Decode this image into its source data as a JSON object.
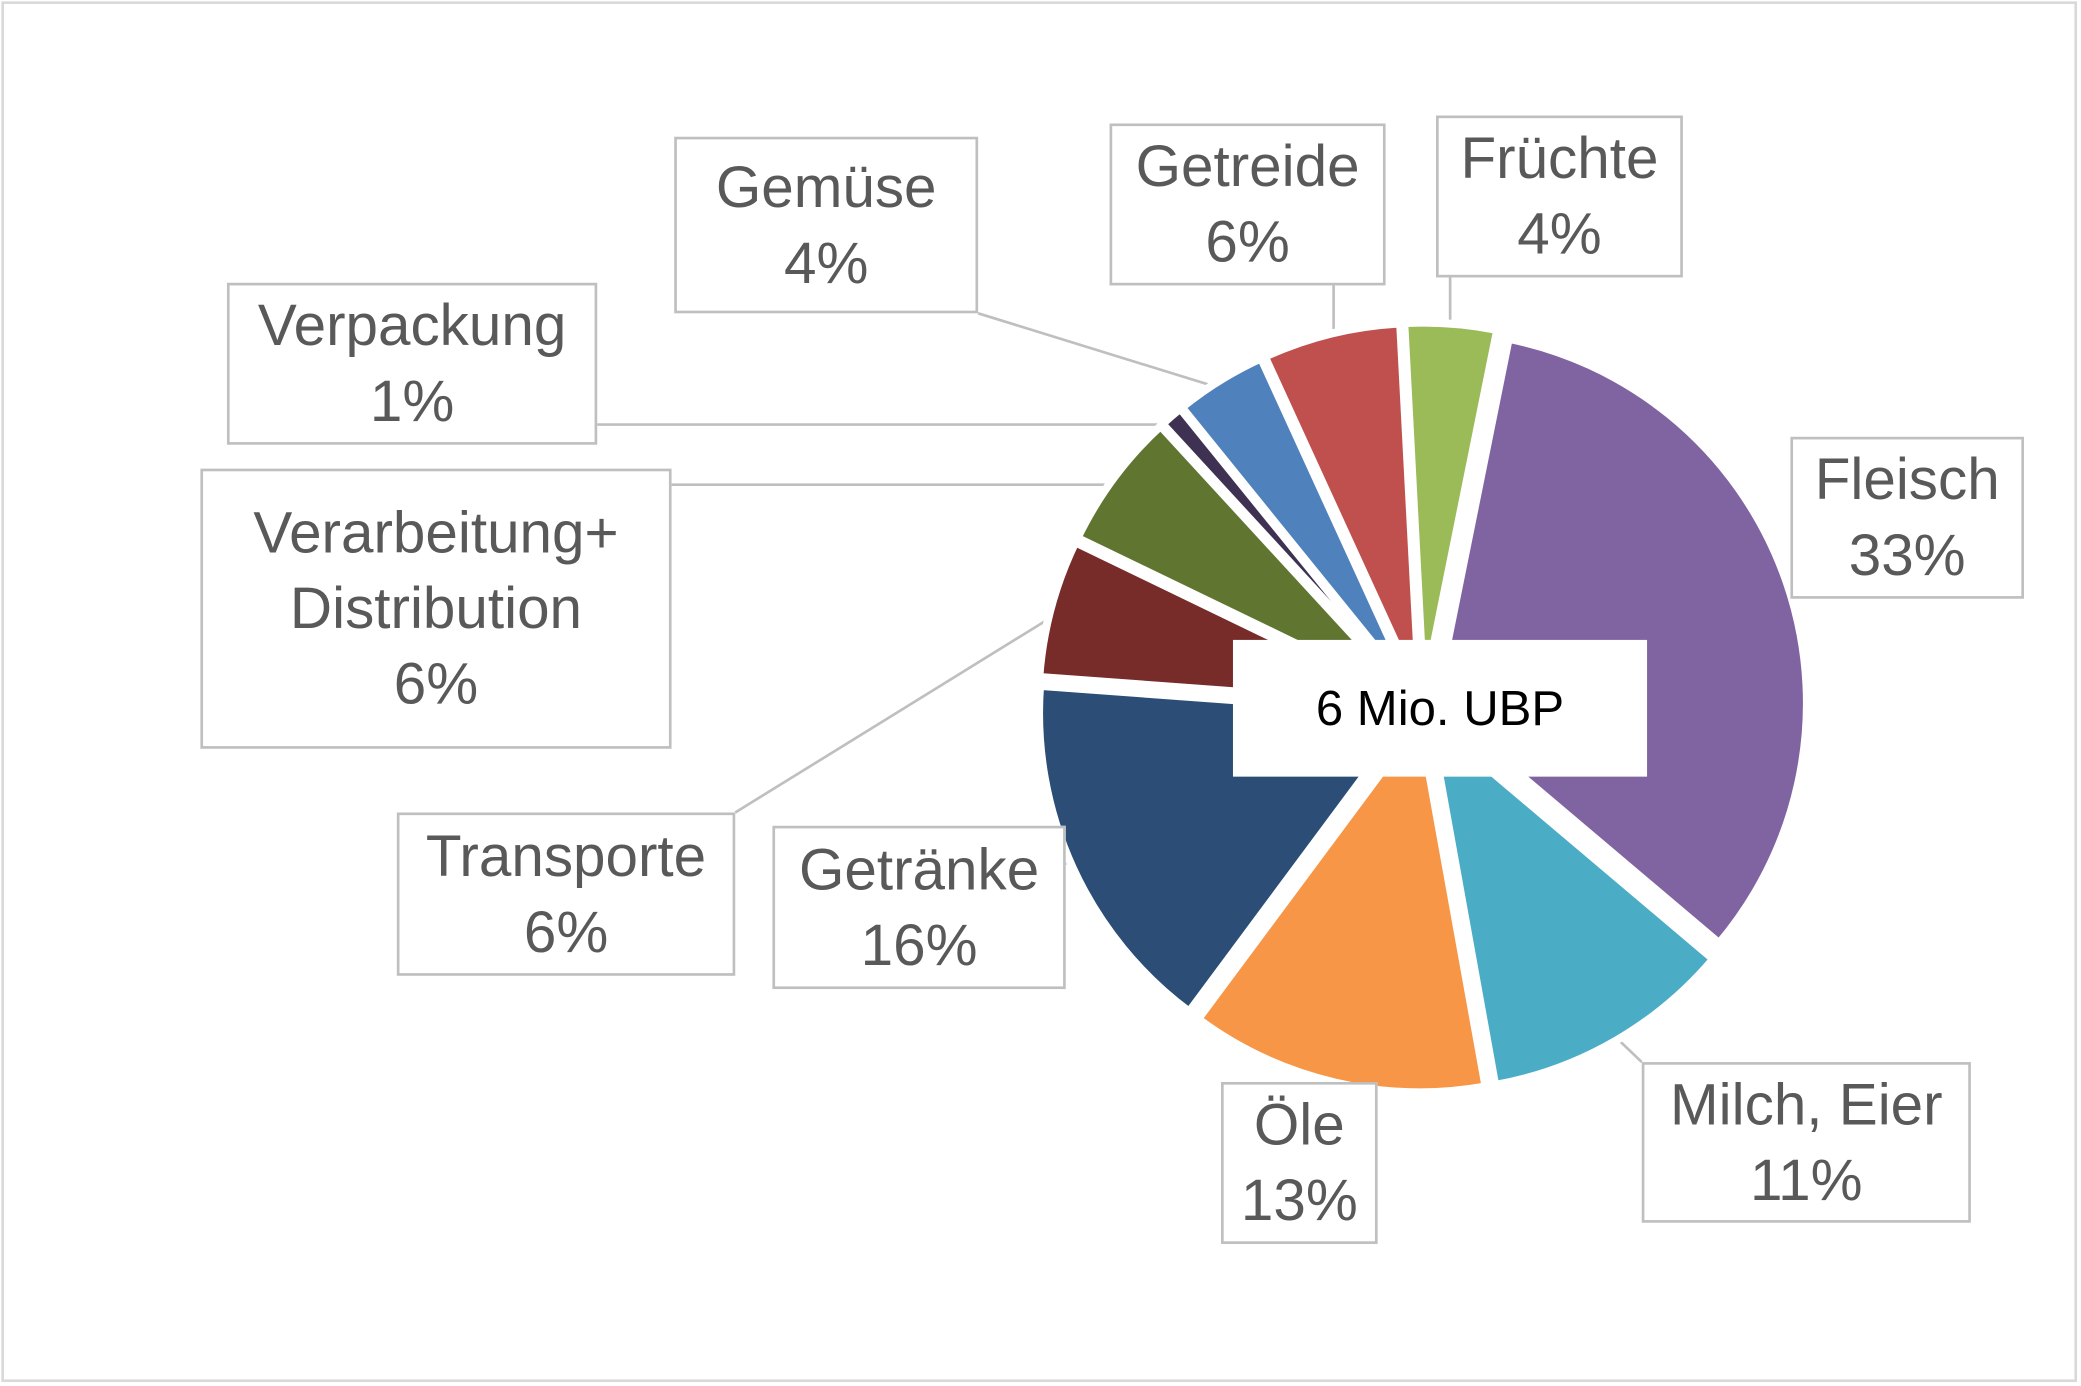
{
  "chart_data": {
    "type": "pie",
    "center_label": "6 Mio. UBP",
    "categories": [
      "Früchte",
      "Fleisch",
      "Milch, Eier",
      "Öle",
      "Getränke",
      "Transporte",
      "Verarbeitung+ Distribution",
      "Verpackung",
      "Gemüse",
      "Getreide"
    ],
    "values": [
      4,
      33,
      11,
      13,
      16,
      6,
      6,
      1,
      4,
      6
    ],
    "value_labels": [
      "4%",
      "33%",
      "11%",
      "13%",
      "16%",
      "6%",
      "6%",
      "1%",
      "4%",
      "6%"
    ],
    "colors": [
      "#9bbb59",
      "#8064a2",
      "#4bacc6",
      "#f79646",
      "#2c4d75",
      "#772c2a",
      "#5f7530",
      "#3f3151",
      "#4f81bd",
      "#c0504d"
    ]
  }
}
